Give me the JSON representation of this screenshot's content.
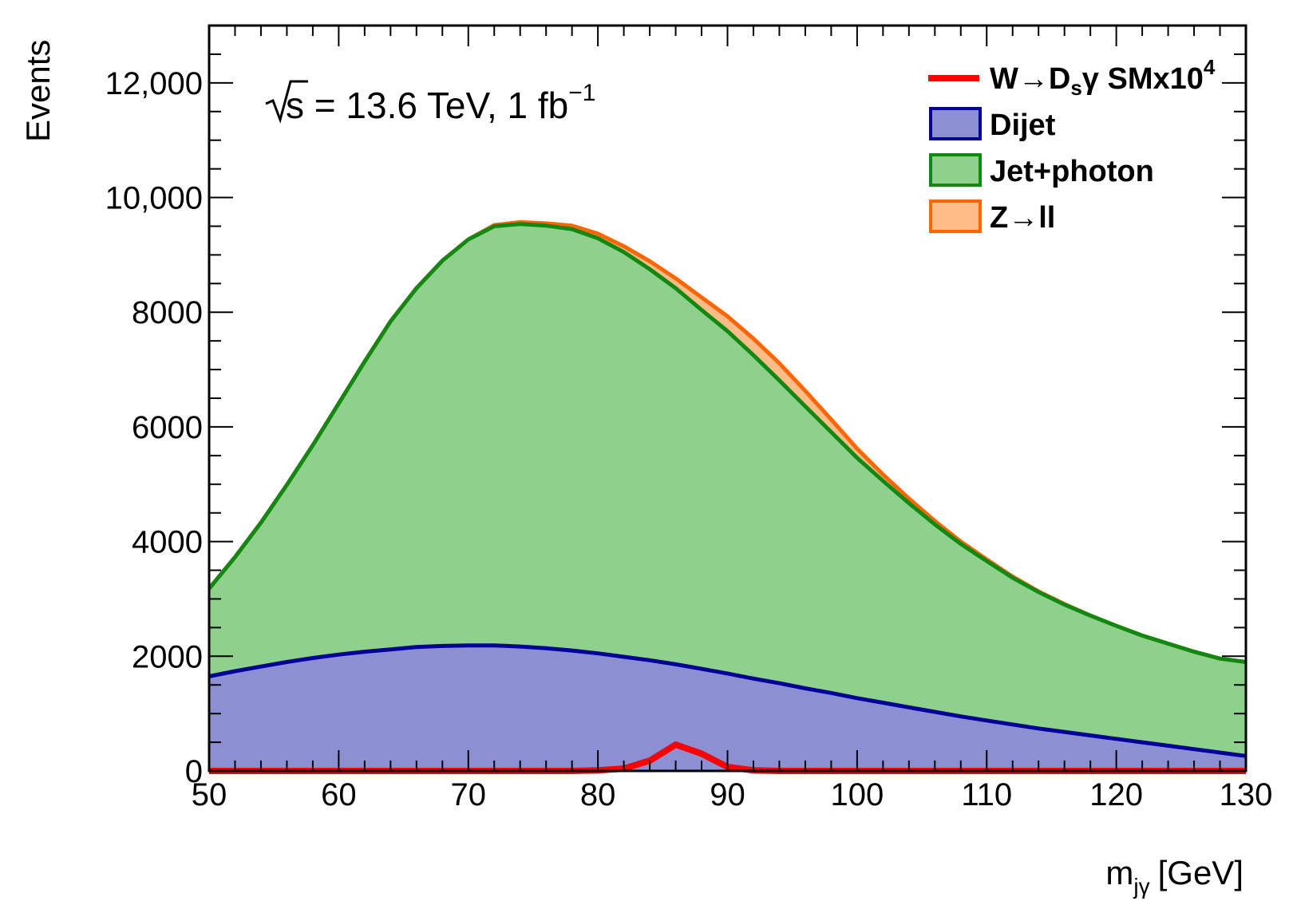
{
  "chart_data": {
    "type": "area",
    "stacked": true,
    "xlabel": {
      "main": "m",
      "sub": "jγ",
      "unit": "[GeV]"
    },
    "ylabel": "Events",
    "xlim": [
      50,
      130
    ],
    "ylim": [
      0,
      13000
    ],
    "xticks": [
      50,
      60,
      70,
      80,
      90,
      100,
      110,
      120,
      130
    ],
    "yticks": [
      {
        "value": 0,
        "label": "0"
      },
      {
        "value": 2000,
        "label": "2000"
      },
      {
        "value": 4000,
        "label": "4000"
      },
      {
        "value": 6000,
        "label": "6000"
      },
      {
        "value": 8000,
        "label": "8000"
      },
      {
        "value": 10000,
        "label": "10,000"
      },
      {
        "value": 12000,
        "label": "12,000"
      }
    ],
    "annotation": {
      "sqrt_s": "s",
      "energy": " = 13.6 TeV, 1 fb",
      "exponent": "−1"
    },
    "x": [
      50,
      52,
      54,
      56,
      58,
      60,
      62,
      64,
      66,
      68,
      70,
      72,
      74,
      76,
      78,
      80,
      82,
      84,
      86,
      88,
      90,
      92,
      94,
      96,
      98,
      100,
      102,
      104,
      106,
      108,
      110,
      112,
      114,
      116,
      118,
      120,
      122,
      124,
      126,
      128,
      130
    ],
    "series": [
      {
        "name": "Dijet",
        "style": "fill",
        "color": "#8c8fd1",
        "line_color": "#000099",
        "values": [
          1650,
          1740,
          1820,
          1900,
          1970,
          2030,
          2080,
          2120,
          2160,
          2180,
          2190,
          2190,
          2170,
          2140,
          2100,
          2050,
          1990,
          1930,
          1860,
          1780,
          1700,
          1610,
          1530,
          1440,
          1360,
          1270,
          1190,
          1110,
          1030,
          950,
          880,
          810,
          740,
          680,
          620,
          560,
          500,
          440,
          380,
          320,
          260
        ]
      },
      {
        "name": "Jet+photon",
        "style": "fill",
        "color": "#8dd18d",
        "line_color": "#118811",
        "values": [
          1530,
          1990,
          2510,
          3090,
          3710,
          4380,
          5060,
          5720,
          6260,
          6720,
          7080,
          7310,
          7370,
          7370,
          7350,
          7240,
          7060,
          6820,
          6560,
          6260,
          5970,
          5640,
          5280,
          4920,
          4550,
          4190,
          3870,
          3560,
          3270,
          3010,
          2780,
          2560,
          2380,
          2220,
          2090,
          1970,
          1860,
          1780,
          1700,
          1640,
          1640
        ]
      },
      {
        "name": "Z→ll",
        "style": "fill",
        "color": "#ffbb88",
        "line_color": "#ff6600",
        "values": [
          0,
          0,
          0,
          0,
          0,
          0,
          0,
          0,
          0,
          0,
          0,
          20,
          30,
          40,
          60,
          80,
          100,
          140,
          170,
          220,
          260,
          290,
          300,
          270,
          220,
          160,
          110,
          80,
          60,
          40,
          30,
          20,
          10,
          10,
          0,
          0,
          0,
          0,
          0,
          0,
          0
        ]
      },
      {
        "name": "W→D",
        "name_sub": "s",
        "name_rest": "γ SMx10",
        "name_sup": "4",
        "style": "line",
        "color": "#ff0000",
        "values": [
          0,
          0,
          0,
          0,
          0,
          0,
          0,
          0,
          0,
          0,
          0,
          0,
          0,
          0,
          0,
          10,
          40,
          180,
          460,
          300,
          70,
          10,
          0,
          0,
          0,
          0,
          0,
          0,
          0,
          0,
          0,
          0,
          0,
          0,
          0,
          0,
          0,
          0,
          0,
          0,
          0
        ]
      }
    ],
    "legend_position": "top-right",
    "grid": false
  }
}
